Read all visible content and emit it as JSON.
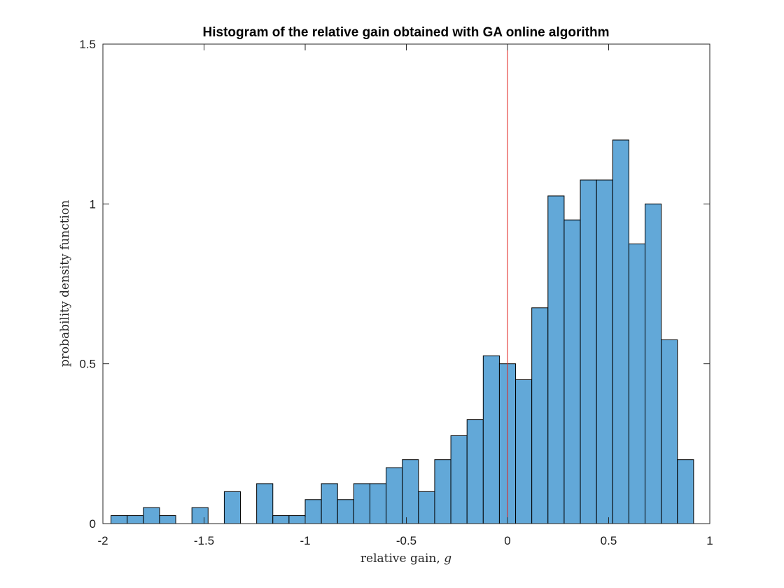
{
  "chart_data": {
    "type": "bar",
    "title": "Histogram of the relative gain obtained with GA online algorithm",
    "xlabel": "relative gain,",
    "xlabel_symbol": "g",
    "ylabel": "probability density function",
    "xlim": [
      -2,
      1
    ],
    "ylim": [
      0,
      1.5
    ],
    "x_ticks": [
      "-2",
      "-1.5",
      "-1",
      "-0.5",
      "0",
      "0.5",
      "1"
    ],
    "x_tick_values": [
      -2,
      -1.5,
      -1,
      -0.5,
      0,
      0.5,
      1
    ],
    "y_ticks": [
      "0",
      "0.5",
      "1",
      "1.5"
    ],
    "y_tick_values": [
      0,
      0.5,
      1,
      1.5
    ],
    "bin_start": -1.96,
    "bin_width": 0.08,
    "values": [
      0.025,
      0.025,
      0.05,
      0.025,
      0,
      0.05,
      0,
      0.1,
      0,
      0.125,
      0.025,
      0.025,
      0.075,
      0.125,
      0.075,
      0.125,
      0.125,
      0.175,
      0.2,
      0.1,
      0.2,
      0.275,
      0.325,
      0.525,
      0.5,
      0.45,
      0.675,
      1.025,
      0.95,
      1.075,
      1.075,
      1.2,
      0.875,
      1.0,
      0.575,
      0.2
    ],
    "reference_line_x": 0,
    "grid": false,
    "colors": {
      "bar_fill": "#62a8d8",
      "bar_edge": "#000000",
      "reference_line": "#e0201b",
      "axes": "#262626"
    }
  }
}
